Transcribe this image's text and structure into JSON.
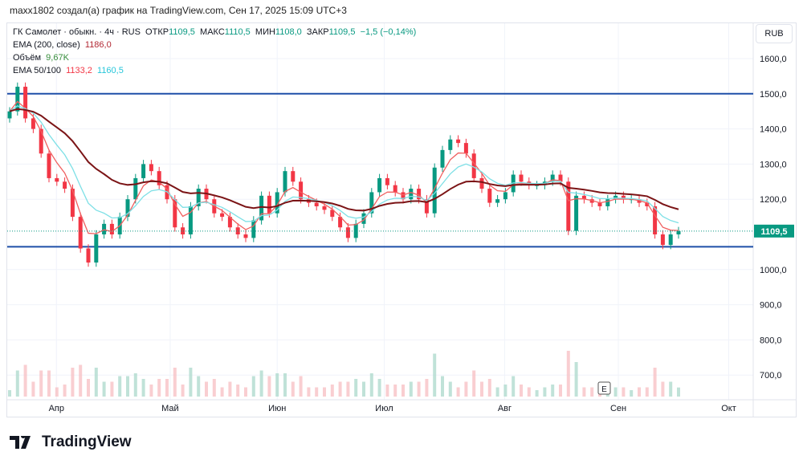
{
  "caption": "maxx1802 создал(а) график на TradingView.com, Сен 17, 2025 15:09 UTC+3",
  "legend": {
    "symbol": "ГК Самолет · обыкн. · 4ч · RUS",
    "o_label": "ОТКР",
    "o": "1109,5",
    "h_label": "МАКС",
    "h": "1110,5",
    "l_label": "МИН",
    "l": "1108,0",
    "c_label": "ЗАКР",
    "c": "1109,5",
    "chg": "−1,5 (−0,14%)",
    "ema200_label": "EMA (200, close)",
    "ema200": "1186,0",
    "vol_label": "Объём",
    "vol": "9,67K",
    "ema50_label": "EMA 50/100",
    "ema50": "1133,2",
    "ema100": "1160,5"
  },
  "currency": "RUB",
  "last_price_label": "1109,5",
  "logo": "TradingView",
  "event_marker": "E",
  "colors": {
    "up": "#089981",
    "down": "#f23645",
    "ema200": "#7b1416",
    "ema50": "#f06060",
    "ema100": "#7ee0e6",
    "level": "#1e4fa8"
  },
  "chart_data": {
    "type": "candlestick",
    "title": "ГК Самолет · 4ч",
    "ylim": [
      650,
      1660
    ],
    "y_ticks": [
      1600,
      1500,
      1400,
      1300,
      1200,
      1000,
      900,
      800,
      700
    ],
    "y_tick_labels": [
      "1600,0",
      "1500,0",
      "1400,0",
      "1300,0",
      "1200,0",
      "1000,0",
      "900,0",
      "800,0",
      "700,0"
    ],
    "x_labels": [
      {
        "label": "Апр",
        "t": 0.07
      },
      {
        "label": "Май",
        "t": 0.24
      },
      {
        "label": "Июн",
        "t": 0.4
      },
      {
        "label": "Июл",
        "t": 0.56
      },
      {
        "label": "Авг",
        "t": 0.74
      },
      {
        "label": "Сен",
        "t": 0.91
      },
      {
        "label": "Окт",
        "t": 1.075
      }
    ],
    "horizontal_levels": [
      1500,
      1065
    ],
    "last_price": 1109.5,
    "closes": [
      1450,
      1520,
      1430,
      1400,
      1330,
      1260,
      1250,
      1230,
      1150,
      1060,
      1020,
      1100,
      1130,
      1100,
      1150,
      1200,
      1260,
      1300,
      1280,
      1240,
      1200,
      1120,
      1100,
      1180,
      1230,
      1200,
      1160,
      1150,
      1120,
      1100,
      1090,
      1140,
      1210,
      1160,
      1220,
      1280,
      1250,
      1200,
      1190,
      1180,
      1170,
      1150,
      1120,
      1090,
      1130,
      1160,
      1220,
      1260,
      1240,
      1220,
      1200,
      1230,
      1200,
      1160,
      1290,
      1340,
      1370,
      1360,
      1330,
      1260,
      1230,
      1190,
      1200,
      1220,
      1270,
      1250,
      1240,
      1240,
      1250,
      1270,
      1250,
      1110,
      1210,
      1200,
      1190,
      1180,
      1200,
      1210,
      1200,
      1200,
      1190,
      1180,
      1100,
      1070,
      1100,
      1109.5
    ]
  }
}
